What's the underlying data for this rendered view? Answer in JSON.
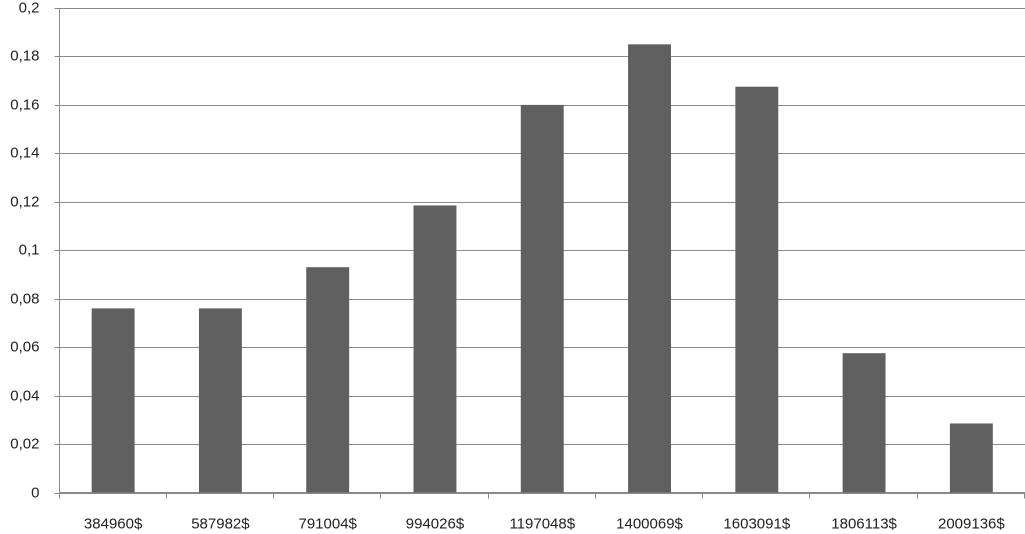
{
  "chart_data": {
    "type": "bar",
    "categories": [
      "384960$",
      "587982$",
      "791004$",
      "994026$",
      "1197048$",
      "1400069$",
      "1603091$",
      "1806113$",
      "2009136$"
    ],
    "values": [
      0.076,
      0.076,
      0.093,
      0.1185,
      0.16,
      0.185,
      0.1675,
      0.0575,
      0.0285
    ],
    "color": "#606060",
    "ylim": [
      0,
      0.2
    ],
    "yticks": [
      0,
      {
        "value": 0.02,
        "label": "0,02"
      },
      {
        "value": 0.04,
        "label": "0,04"
      },
      {
        "value": 0.06,
        "label": "0,06"
      },
      {
        "value": 0.08,
        "label": "0,08"
      },
      {
        "value": 0.1,
        "label": "0,1"
      },
      {
        "value": 0.12,
        "label": "0,12"
      },
      {
        "value": 0.14,
        "label": "0,14"
      },
      {
        "value": 0.16,
        "label": "0,16"
      },
      {
        "value": 0.18,
        "label": "0,18"
      },
      {
        "value": 0.2,
        "label": "0,2"
      }
    ],
    "grid": true
  }
}
